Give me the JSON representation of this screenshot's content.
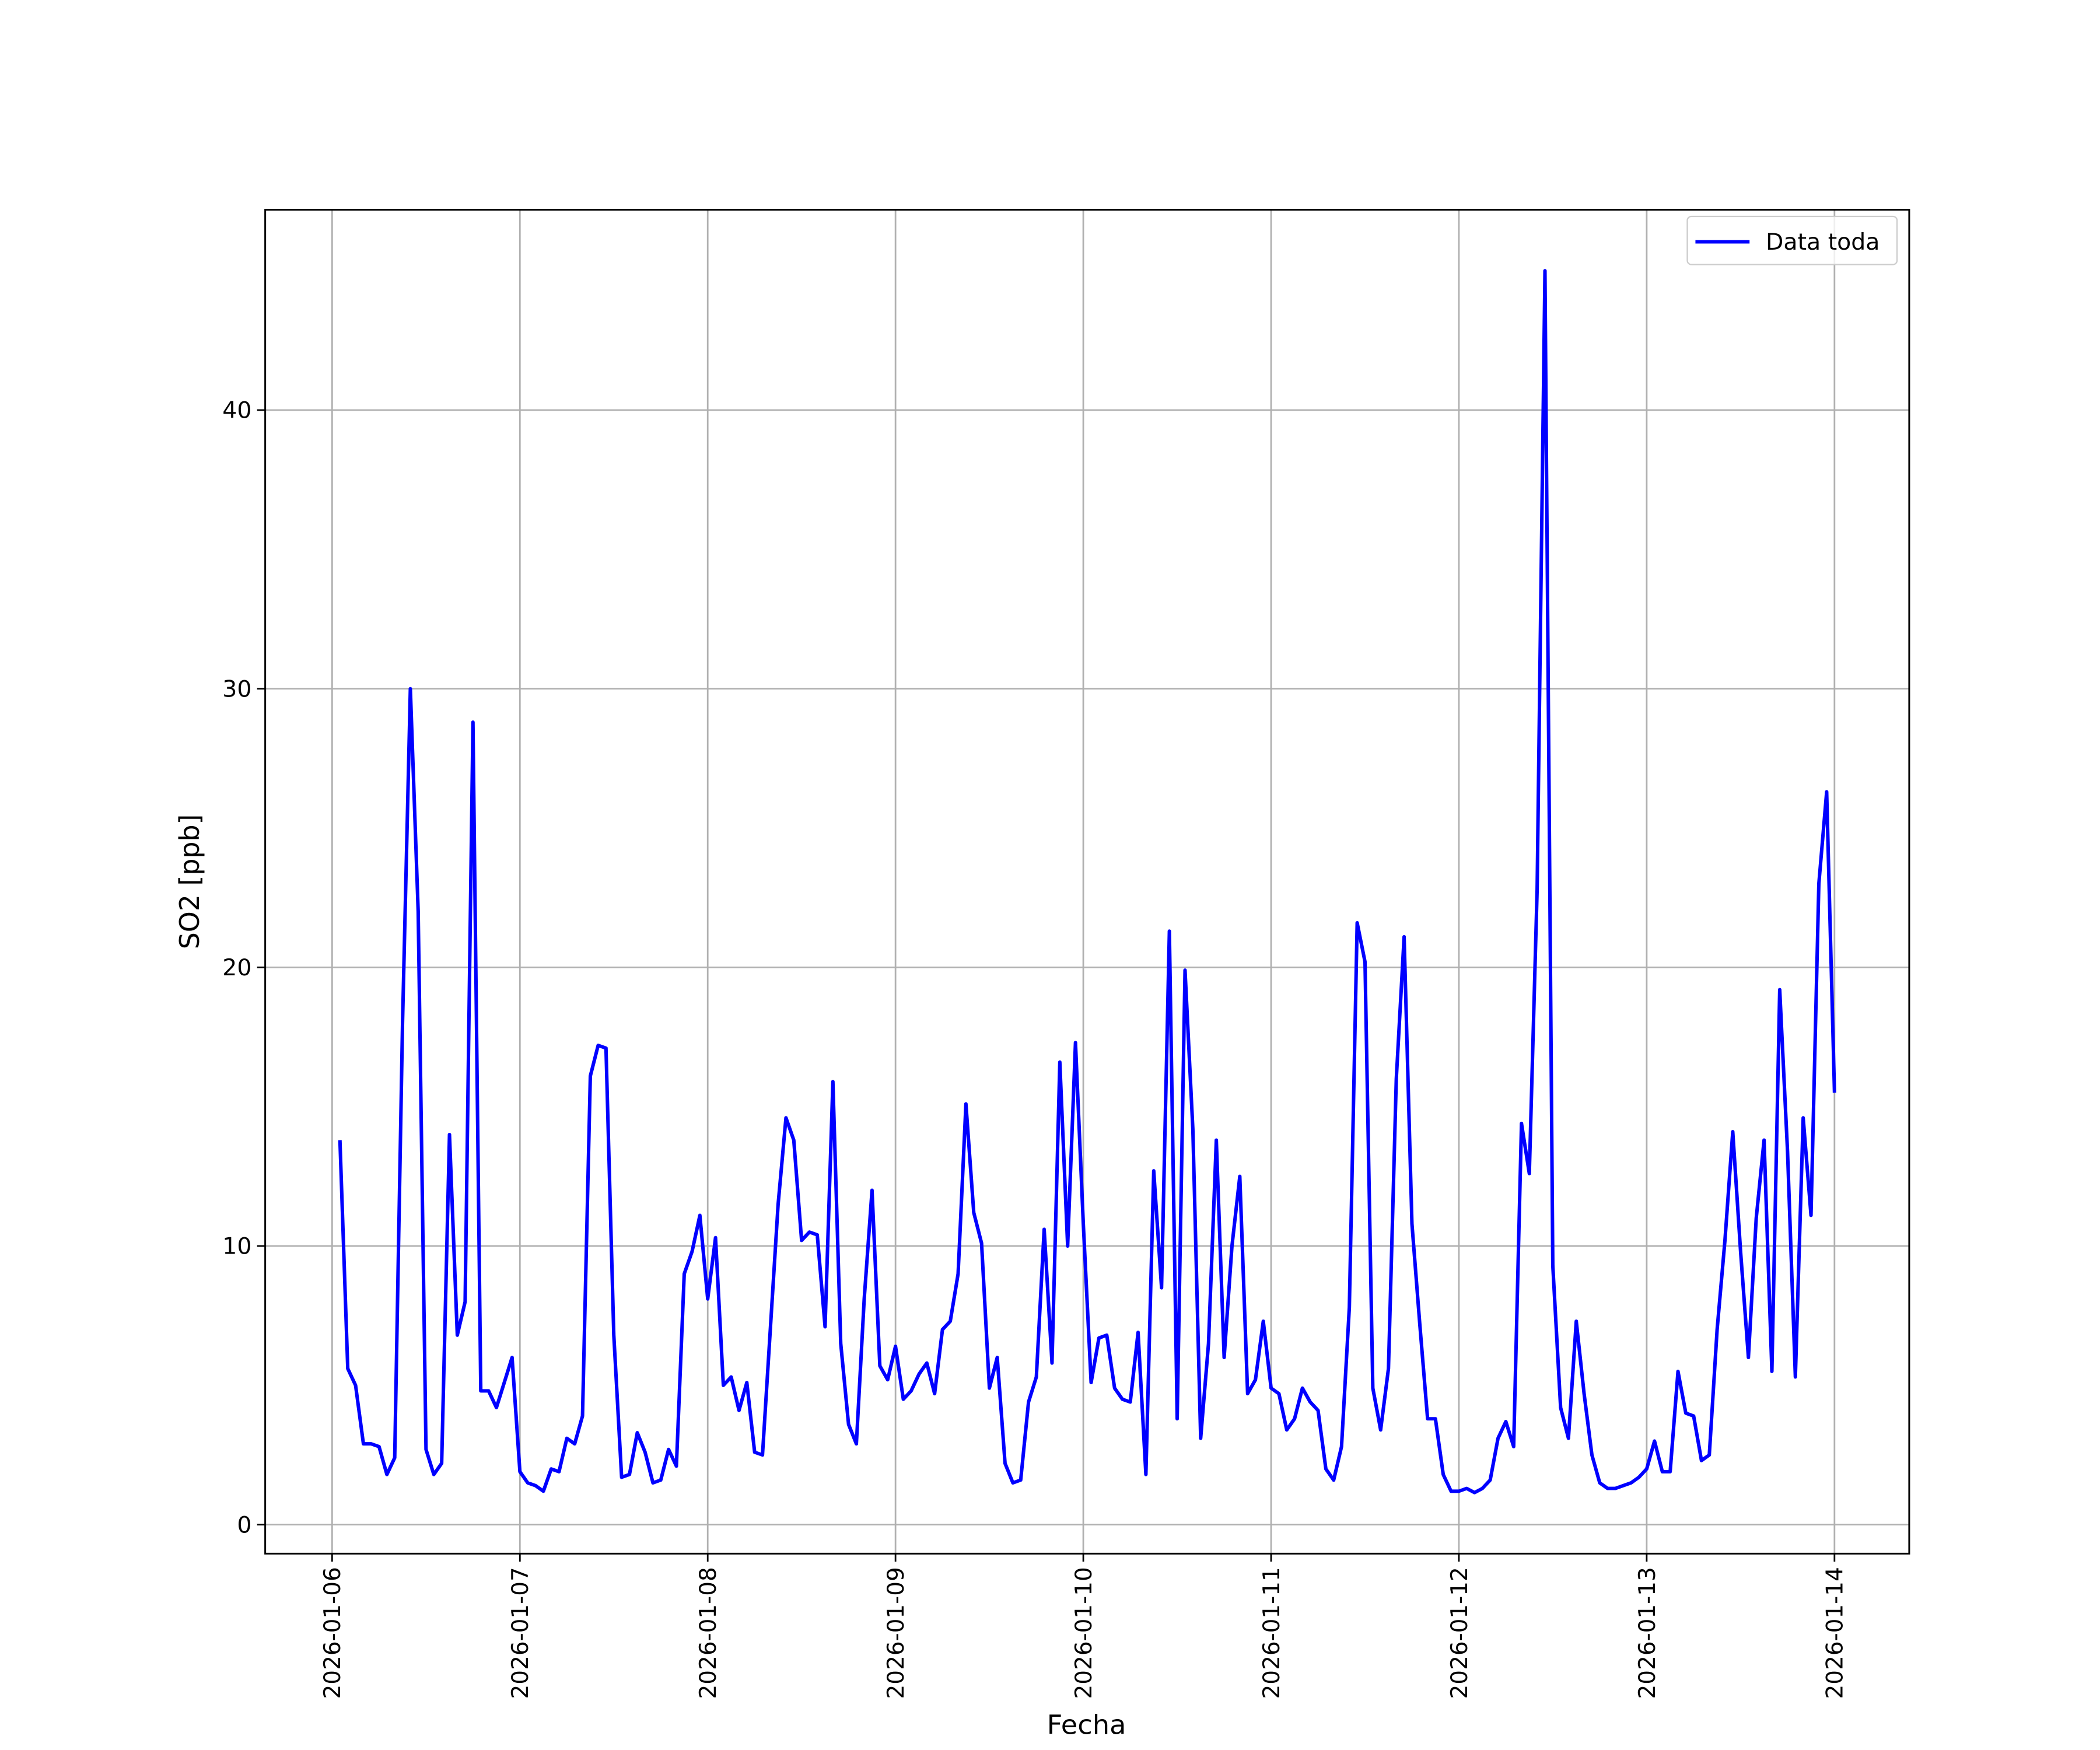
{
  "chart_data": {
    "type": "line",
    "xlabel": "Fecha",
    "ylabel": "SO2 [ppb]",
    "x": [
      "2026-01-06 01:00",
      "2026-01-06 02:00",
      "2026-01-06 03:00",
      "2026-01-06 04:00",
      "2026-01-06 05:00",
      "2026-01-06 06:00",
      "2026-01-06 07:00",
      "2026-01-06 08:00",
      "2026-01-06 09:00",
      "2026-01-06 10:00",
      "2026-01-06 11:00",
      "2026-01-06 12:00",
      "2026-01-06 13:00",
      "2026-01-06 14:00",
      "2026-01-06 15:00",
      "2026-01-06 16:00",
      "2026-01-06 17:00",
      "2026-01-06 18:00",
      "2026-01-06 19:00",
      "2026-01-06 20:00",
      "2026-01-06 21:00",
      "2026-01-06 22:00",
      "2026-01-06 23:00",
      "2026-01-07 00:00",
      "2026-01-07 01:00",
      "2026-01-07 02:00",
      "2026-01-07 03:00",
      "2026-01-07 04:00",
      "2026-01-07 05:00",
      "2026-01-07 06:00",
      "2026-01-07 07:00",
      "2026-01-07 08:00",
      "2026-01-07 09:00",
      "2026-01-07 10:00",
      "2026-01-07 11:00",
      "2026-01-07 12:00",
      "2026-01-07 13:00",
      "2026-01-07 14:00",
      "2026-01-07 15:00",
      "2026-01-07 16:00",
      "2026-01-07 17:00",
      "2026-01-07 18:00",
      "2026-01-07 19:00",
      "2026-01-07 20:00",
      "2026-01-07 21:00",
      "2026-01-07 22:00",
      "2026-01-07 23:00",
      "2026-01-08 00:00",
      "2026-01-08 01:00",
      "2026-01-08 02:00",
      "2026-01-08 03:00",
      "2026-01-08 04:00",
      "2026-01-08 05:00",
      "2026-01-08 06:00",
      "2026-01-08 07:00",
      "2026-01-08 08:00",
      "2026-01-08 09:00",
      "2026-01-08 10:00",
      "2026-01-08 11:00",
      "2026-01-08 12:00",
      "2026-01-08 13:00",
      "2026-01-08 14:00",
      "2026-01-08 15:00",
      "2026-01-08 16:00",
      "2026-01-08 17:00",
      "2026-01-08 18:00",
      "2026-01-08 19:00",
      "2026-01-08 20:00",
      "2026-01-08 21:00",
      "2026-01-08 22:00",
      "2026-01-08 23:00",
      "2026-01-09 00:00",
      "2026-01-09 01:00",
      "2026-01-09 02:00",
      "2026-01-09 03:00",
      "2026-01-09 04:00",
      "2026-01-09 05:00",
      "2026-01-09 06:00",
      "2026-01-09 07:00",
      "2026-01-09 08:00",
      "2026-01-09 09:00",
      "2026-01-09 10:00",
      "2026-01-09 11:00",
      "2026-01-09 12:00",
      "2026-01-09 13:00",
      "2026-01-09 14:00",
      "2026-01-09 15:00",
      "2026-01-09 16:00",
      "2026-01-09 17:00",
      "2026-01-09 18:00",
      "2026-01-09 19:00",
      "2026-01-09 20:00",
      "2026-01-09 21:00",
      "2026-01-09 22:00",
      "2026-01-09 23:00",
      "2026-01-10 00:00",
      "2026-01-10 01:00",
      "2026-01-10 02:00",
      "2026-01-10 03:00",
      "2026-01-10 04:00",
      "2026-01-10 05:00",
      "2026-01-10 06:00",
      "2026-01-10 07:00",
      "2026-01-10 08:00",
      "2026-01-10 09:00",
      "2026-01-10 10:00",
      "2026-01-10 11:00",
      "2026-01-10 12:00",
      "2026-01-10 13:00",
      "2026-01-10 14:00",
      "2026-01-10 15:00",
      "2026-01-10 16:00",
      "2026-01-10 17:00",
      "2026-01-10 18:00",
      "2026-01-10 19:00",
      "2026-01-10 20:00",
      "2026-01-10 21:00",
      "2026-01-10 22:00",
      "2026-01-10 23:00",
      "2026-01-11 00:00",
      "2026-01-11 01:00",
      "2026-01-11 02:00",
      "2026-01-11 03:00",
      "2026-01-11 04:00",
      "2026-01-11 05:00",
      "2026-01-11 06:00",
      "2026-01-11 07:00",
      "2026-01-11 08:00",
      "2026-01-11 09:00",
      "2026-01-11 10:00",
      "2026-01-11 11:00",
      "2026-01-11 12:00",
      "2026-01-11 13:00",
      "2026-01-11 14:00",
      "2026-01-11 15:00",
      "2026-01-11 16:00",
      "2026-01-11 17:00",
      "2026-01-11 18:00",
      "2026-01-11 19:00",
      "2026-01-11 20:00",
      "2026-01-11 21:00",
      "2026-01-11 22:00",
      "2026-01-11 23:00",
      "2026-01-12 00:00",
      "2026-01-12 01:00",
      "2026-01-12 02:00",
      "2026-01-12 03:00",
      "2026-01-12 04:00",
      "2026-01-12 05:00",
      "2026-01-12 06:00",
      "2026-01-12 07:00",
      "2026-01-12 08:00",
      "2026-01-12 09:00",
      "2026-01-12 10:00",
      "2026-01-12 11:00",
      "2026-01-12 12:00",
      "2026-01-12 13:00",
      "2026-01-12 14:00",
      "2026-01-12 15:00",
      "2026-01-12 16:00",
      "2026-01-12 17:00",
      "2026-01-12 18:00",
      "2026-01-12 19:00",
      "2026-01-12 20:00",
      "2026-01-12 21:00",
      "2026-01-12 22:00",
      "2026-01-12 23:00",
      "2026-01-13 00:00",
      "2026-01-13 01:00",
      "2026-01-13 02:00",
      "2026-01-13 03:00",
      "2026-01-13 04:00",
      "2026-01-13 05:00",
      "2026-01-13 06:00",
      "2026-01-13 07:00",
      "2026-01-13 08:00",
      "2026-01-13 09:00",
      "2026-01-13 10:00",
      "2026-01-13 11:00",
      "2026-01-13 12:00",
      "2026-01-13 13:00",
      "2026-01-13 14:00",
      "2026-01-13 15:00",
      "2026-01-13 16:00",
      "2026-01-13 17:00",
      "2026-01-13 18:00",
      "2026-01-13 19:00",
      "2026-01-13 20:00",
      "2026-01-13 21:00",
      "2026-01-13 22:00",
      "2026-01-13 23:00",
      "2026-01-14 00:00"
    ],
    "series": [
      {
        "name": "Data toda",
        "color": "#0000ff",
        "values": [
          13.8,
          5.6,
          5.0,
          2.9,
          2.9,
          2.8,
          1.8,
          2.4,
          18,
          30,
          22,
          2.7,
          1.8,
          2.2,
          14,
          6.8,
          8,
          28.8,
          4.8,
          4.8,
          4.2,
          5.1,
          6.0,
          1.9,
          1.5,
          1.4,
          1.2,
          2.0,
          1.9,
          3.1,
          2.9,
          3.9,
          16.1,
          17.2,
          17.1,
          6.8,
          1.7,
          1.8,
          3.3,
          2.6,
          1.5,
          1.6,
          2.7,
          2.1,
          9.0,
          9.8,
          11.1,
          8.1,
          10.3,
          5.0,
          5.3,
          4.1,
          5.1,
          2.6,
          2.5,
          7.0,
          11.5,
          14.6,
          13.8,
          10.2,
          10.5,
          10.4,
          7.1,
          15.9,
          6.5,
          3.6,
          2.9,
          8.1,
          12.0,
          5.7,
          5.2,
          6.4,
          4.5,
          4.8,
          5.4,
          5.8,
          4.7,
          7.0,
          7.3,
          9.0,
          15.1,
          11.2,
          10.1,
          4.9,
          6.0,
          2.2,
          1.5,
          1.6,
          4.4,
          5.3,
          10.6,
          5.8,
          16.6,
          10.0,
          17.3,
          10.8,
          5.1,
          6.7,
          6.8,
          4.9,
          4.5,
          4.4,
          6.9,
          1.8,
          12.7,
          8.5,
          21.3,
          3.8,
          19.9,
          14.2,
          3.1,
          6.5,
          13.8,
          6.0,
          10.0,
          12.5,
          4.7,
          5.2,
          7.3,
          4.9,
          4.7,
          3.4,
          3.8,
          4.9,
          4.4,
          4.1,
          2.0,
          1.6,
          2.8,
          7.8,
          21.6,
          20.2,
          4.9,
          3.4,
          5.6,
          16.0,
          21.1,
          10.8,
          7.2,
          3.8,
          3.8,
          1.8,
          1.2,
          1.2,
          1.3,
          1.15,
          1.3,
          1.6,
          3.1,
          3.7,
          2.8,
          14.4,
          12.6,
          22.8,
          45.0,
          9.3,
          4.2,
          3.1,
          7.3,
          4.7,
          2.5,
          1.5,
          1.3,
          1.3,
          1.4,
          1.5,
          1.7,
          2.0,
          3.0,
          1.9,
          1.9,
          5.5,
          4.0,
          3.9,
          2.3,
          2.5,
          7.0,
          10.2,
          14.1,
          9.8,
          6.0,
          11.0,
          13.8,
          5.5,
          19.2,
          13.4,
          5.3,
          14.6,
          11.1,
          23.0,
          26.3,
          15.5
        ]
      }
    ],
    "xlim": [
      "2026-01-05 15:27",
      "2026-01-14 09:33"
    ],
    "xticks": [
      "2026-01-06",
      "2026-01-07",
      "2026-01-08",
      "2026-01-09",
      "2026-01-10",
      "2026-01-11",
      "2026-01-12",
      "2026-01-13",
      "2026-01-14"
    ],
    "ylim": [
      -1.04,
      47.19
    ],
    "yticks": [
      0,
      10,
      20,
      30,
      40
    ],
    "grid": true,
    "legend": "upper right"
  }
}
